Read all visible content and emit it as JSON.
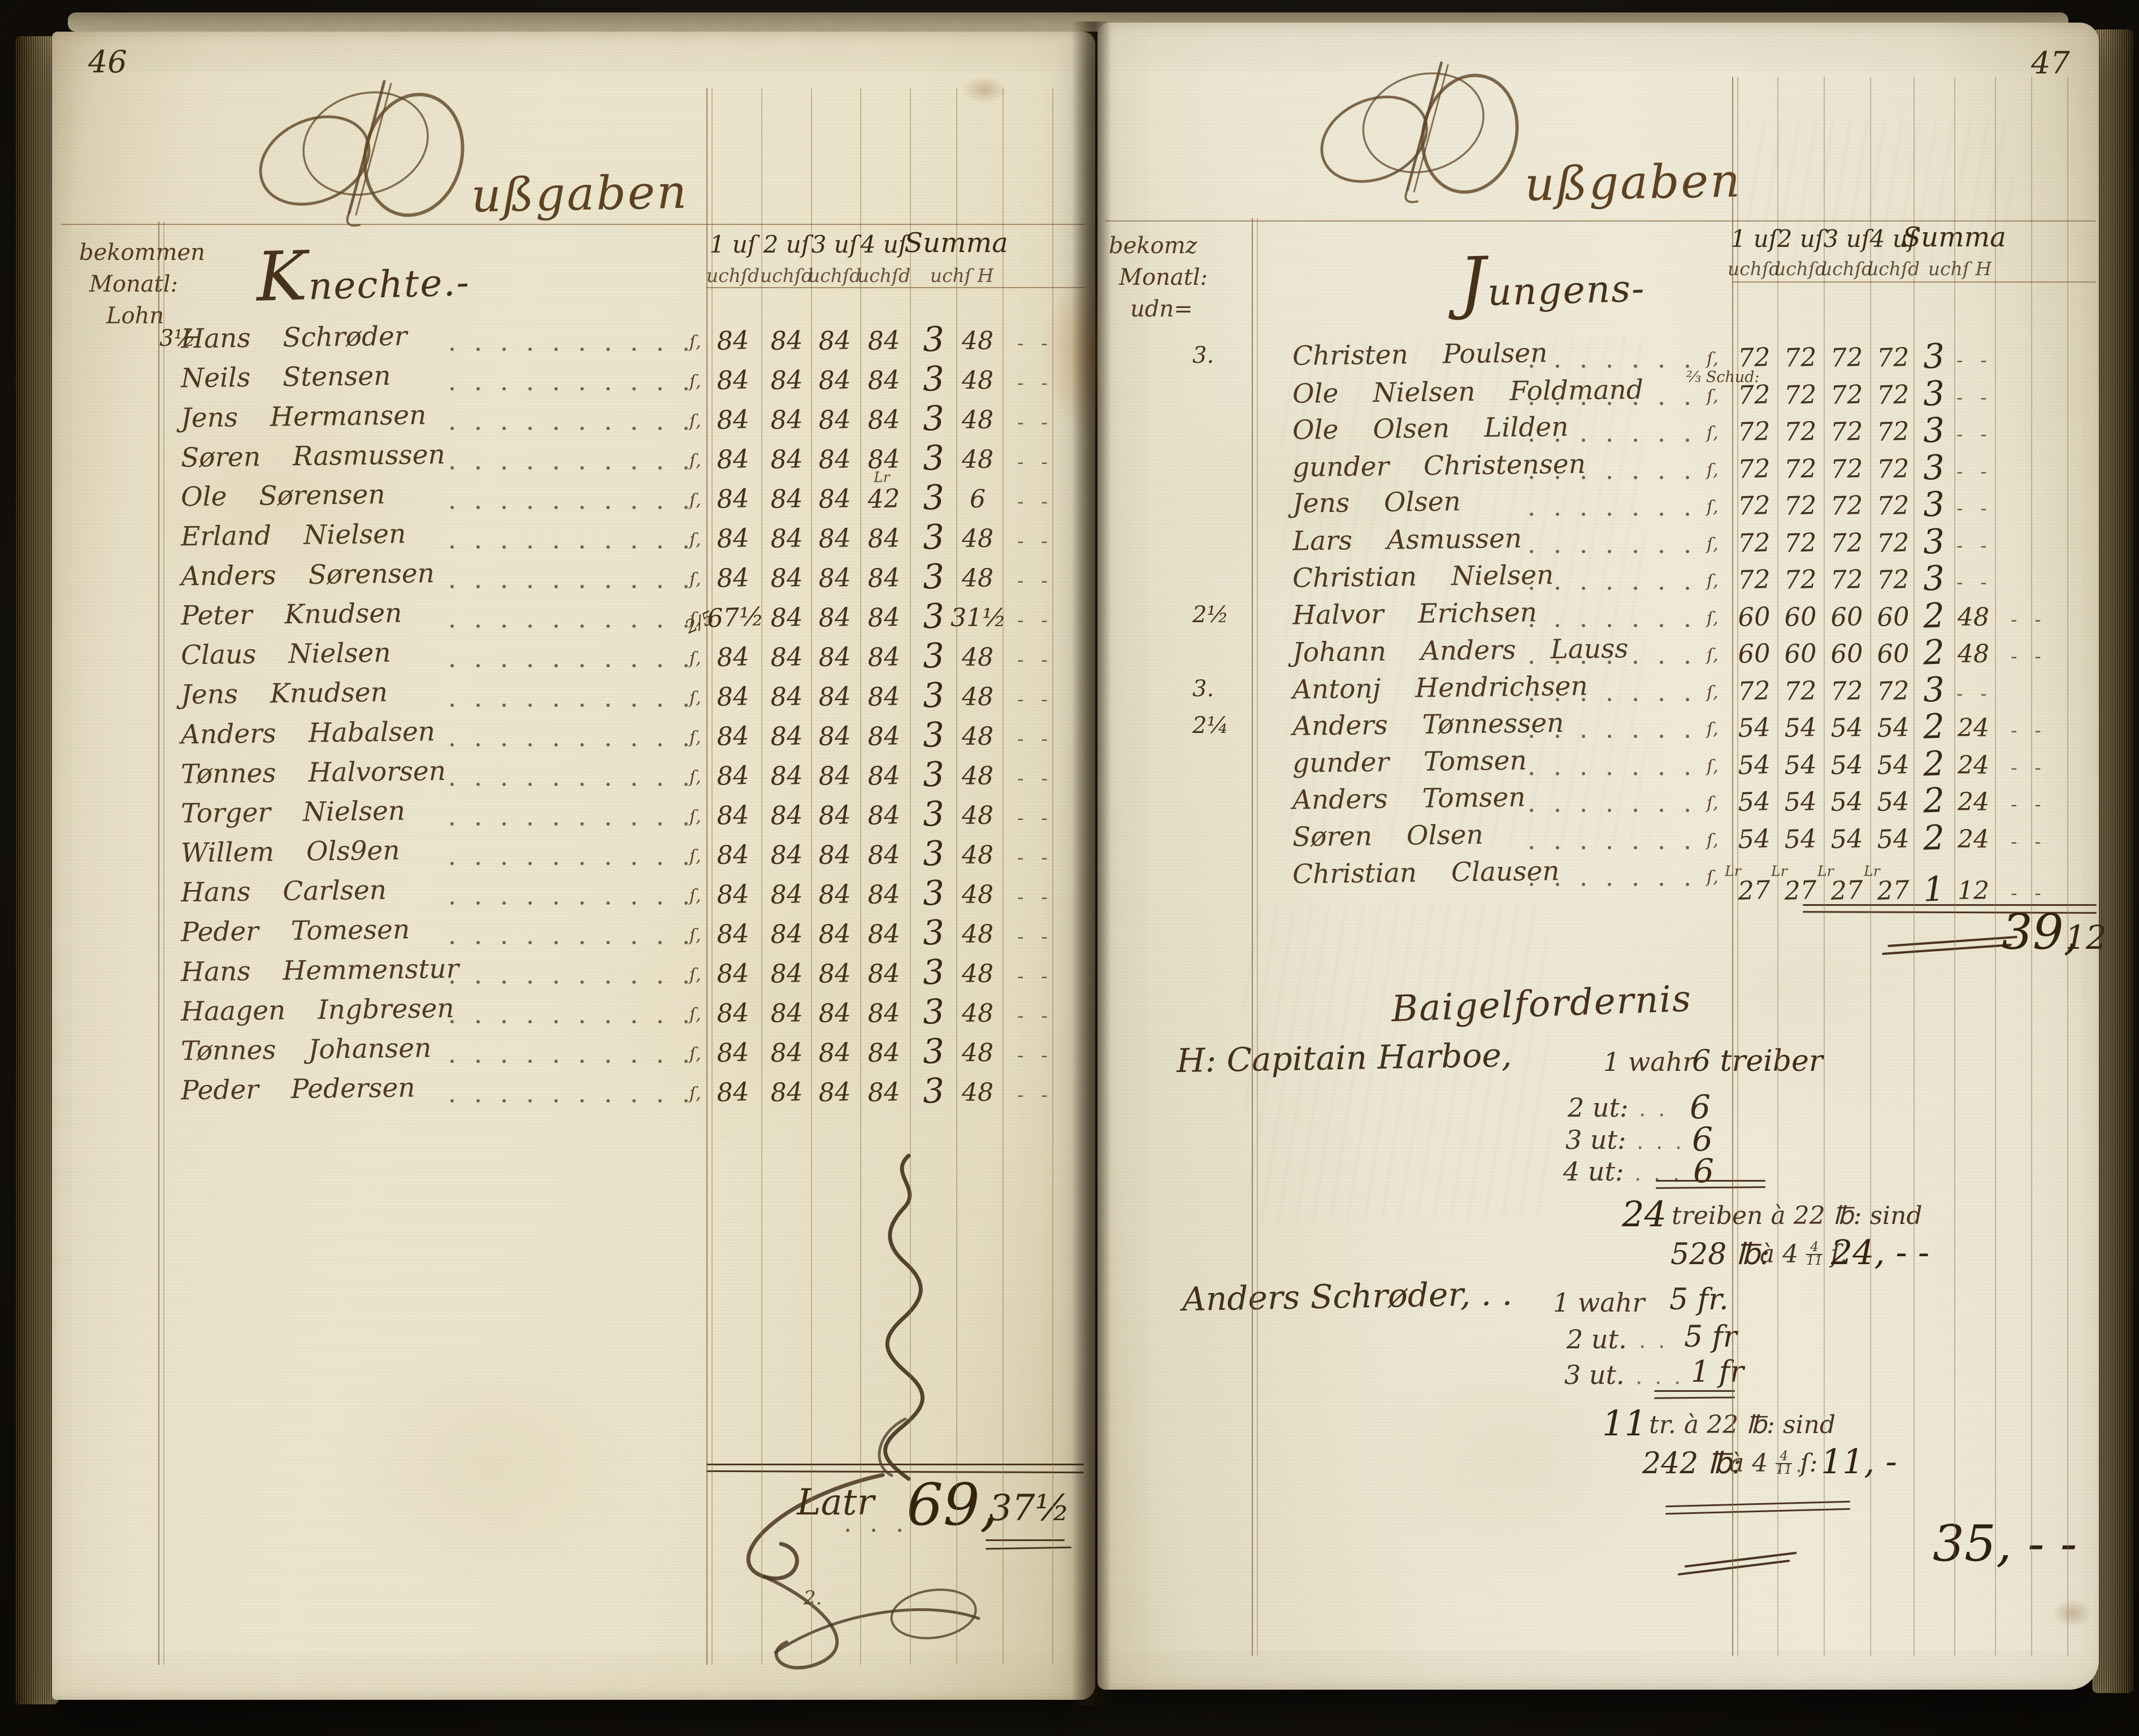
{
  "decor": {
    "tick": "ſ,",
    "row_dash": "- -",
    "flourish_note": "2."
  },
  "left_page": {
    "page_number": "46",
    "title_tail": "ußgaben",
    "margin_header": [
      "bekommen",
      "Monatl:",
      "Lohn"
    ],
    "week_headers": [
      "1 uſ",
      "2 uſ",
      "3 uſ",
      "4 uſ"
    ],
    "summa_header": "Summa",
    "week_subheaders": [
      "uchſd",
      "uchſd",
      "uchſd",
      "uchſd"
    ],
    "summa_subheader": "uchſ H",
    "section_title": "Knechte.-",
    "rows": [
      {
        "margin": "3½",
        "name": "Hans Schrøder",
        "weeks": [
          "84",
          "84",
          "84",
          "84"
        ],
        "rdl": "3",
        "skill": "48"
      },
      {
        "name": "Neils Stensen",
        "weeks": [
          "84",
          "84",
          "84",
          "84"
        ],
        "rdl": "3",
        "skill": "48"
      },
      {
        "name": "Jens Hermansen",
        "weeks": [
          "84",
          "84",
          "84",
          "84"
        ],
        "rdl": "3",
        "skill": "48"
      },
      {
        "name": "Søren Rasmussen",
        "weeks": [
          "84",
          "84",
          "84",
          "84"
        ],
        "rdl": "3",
        "skill": "48"
      },
      {
        "name": "Ole Sørensen",
        "weeks": [
          "84",
          "84",
          "84",
          "42"
        ],
        "week_note": "Lr",
        "week_note_col": 3,
        "rdl": "3",
        "skill": "6"
      },
      {
        "name": "Erland Nielsen",
        "weeks": [
          "84",
          "84",
          "84",
          "84"
        ],
        "rdl": "3",
        "skill": "48"
      },
      {
        "name": "Anders Sørensen",
        "weeks": [
          "84",
          "84",
          "84",
          "84"
        ],
        "rdl": "3",
        "skill": "48"
      },
      {
        "margin2": "2/5",
        "name": "Peter Knudsen",
        "weeks": [
          "67½",
          "84",
          "84",
          "84"
        ],
        "rdl": "3",
        "skill": "31½"
      },
      {
        "name": "Claus Nielsen",
        "weeks": [
          "84",
          "84",
          "84",
          "84"
        ],
        "rdl": "3",
        "skill": "48"
      },
      {
        "name": "Jens Knudsen",
        "weeks": [
          "84",
          "84",
          "84",
          "84"
        ],
        "rdl": "3",
        "skill": "48"
      },
      {
        "name": "Anders Habalsen",
        "weeks": [
          "84",
          "84",
          "84",
          "84"
        ],
        "rdl": "3",
        "skill": "48"
      },
      {
        "name": "Tønnes Halvorsen",
        "weeks": [
          "84",
          "84",
          "84",
          "84"
        ],
        "rdl": "3",
        "skill": "48"
      },
      {
        "name": "Torger Nielsen",
        "weeks": [
          "84",
          "84",
          "84",
          "84"
        ],
        "rdl": "3",
        "skill": "48"
      },
      {
        "name": "Willem Ols9en",
        "weeks": [
          "84",
          "84",
          "84",
          "84"
        ],
        "rdl": "3",
        "skill": "48"
      },
      {
        "name": "Hans Carlsen",
        "weeks": [
          "84",
          "84",
          "84",
          "84"
        ],
        "rdl": "3",
        "skill": "48"
      },
      {
        "name": "Peder Tomesen",
        "weeks": [
          "84",
          "84",
          "84",
          "84"
        ],
        "rdl": "3",
        "skill": "48"
      },
      {
        "name": "Hans Hemmenstur",
        "weeks": [
          "84",
          "84",
          "84",
          "84"
        ],
        "rdl": "3",
        "skill": "48"
      },
      {
        "name": "Haagen Ingbresen",
        "weeks": [
          "84",
          "84",
          "84",
          "84"
        ],
        "rdl": "3",
        "skill": "48"
      },
      {
        "name": "Tønnes Johansen",
        "weeks": [
          "84",
          "84",
          "84",
          "84"
        ],
        "rdl": "3",
        "skill": "48"
      },
      {
        "name": "Peder Pedersen",
        "weeks": [
          "84",
          "84",
          "84",
          "84"
        ],
        "rdl": "3",
        "skill": "48"
      }
    ],
    "total": {
      "label": "Latr",
      "rdl": "69,",
      "sk": "37½"
    }
  },
  "right_page": {
    "page_number": "47",
    "title_tail": "ußgaben",
    "margin_header": [
      "bekomz",
      "Monatl:",
      "udn="
    ],
    "week_headers": [
      "1 uſ",
      "2 uſ",
      "3 uſ",
      "4 uſ"
    ],
    "summa_header": "Summa",
    "week_subheaders": [
      "uchſd",
      "uchſd",
      "uchſd",
      "uchſd"
    ],
    "summa_subheader": "uchſ H",
    "section_title": "Jungens-",
    "rows": [
      {
        "margin": "3.",
        "name": "Christen Poulsen",
        "weeks": [
          "72",
          "72",
          "72",
          "72"
        ],
        "rdl": "3",
        "skill": ""
      },
      {
        "name": "Ole Nielsen Foldmand",
        "pre_note": "⅔ Schud:",
        "weeks": [
          "72",
          "72",
          "72",
          "72"
        ],
        "rdl": "3",
        "skill": ""
      },
      {
        "name": "Ole Olsen Lilden",
        "weeks": [
          "72",
          "72",
          "72",
          "72"
        ],
        "rdl": "3",
        "skill": ""
      },
      {
        "name": "gunder Christensen",
        "weeks": [
          "72",
          "72",
          "72",
          "72"
        ],
        "rdl": "3",
        "skill": ""
      },
      {
        "name": "Jens Olsen",
        "weeks": [
          "72",
          "72",
          "72",
          "72"
        ],
        "rdl": "3",
        "skill": ""
      },
      {
        "name": "Lars Asmussen",
        "weeks": [
          "72",
          "72",
          "72",
          "72"
        ],
        "rdl": "3",
        "skill": ""
      },
      {
        "name": "Christian Nielsen",
        "weeks": [
          "72",
          "72",
          "72",
          "72"
        ],
        "rdl": "3",
        "skill": ""
      },
      {
        "margin": "2½",
        "name": "Halvor Erichsen",
        "weeks": [
          "60",
          "60",
          "60",
          "60"
        ],
        "rdl": "2",
        "skill": "48"
      },
      {
        "name": "Johann Anders Lauss",
        "weeks": [
          "60",
          "60",
          "60",
          "60"
        ],
        "rdl": "2",
        "skill": "48"
      },
      {
        "margin": "3.",
        "name": "Antonj Hendrichsen",
        "weeks": [
          "72",
          "72",
          "72",
          "72"
        ],
        "rdl": "3",
        "skill": ""
      },
      {
        "margin": "2¼",
        "name": "Anders Tønnessen",
        "weeks": [
          "54",
          "54",
          "54",
          "54"
        ],
        "rdl": "2",
        "skill": "24"
      },
      {
        "name": "gunder Tomsen",
        "weeks": [
          "54",
          "54",
          "54",
          "54"
        ],
        "rdl": "2",
        "skill": "24"
      },
      {
        "name": "Anders Tomsen",
        "weeks": [
          "54",
          "54",
          "54",
          "54"
        ],
        "rdl": "2",
        "skill": "24"
      },
      {
        "name": "Søren Olsen",
        "weeks": [
          "54",
          "54",
          "54",
          "54"
        ],
        "rdl": "2",
        "skill": "24"
      },
      {
        "name": "Christian Clausen",
        "weeks": [
          "27",
          "27",
          "27",
          "27"
        ],
        "cell_marks": "Lr",
        "offset": true,
        "rdl": "1",
        "skill": "12"
      }
    ],
    "total": {
      "rdl": "39,",
      "sk": "12"
    },
    "expense_section": {
      "title": "Baigelfordernis",
      "entries": [
        {
          "name": "H: Capitain Harboe,",
          "first_line_label": "1 wahr",
          "first_line_value": "6 treiber",
          "lines": [
            {
              "label": "2 ut:",
              "value": "6"
            },
            {
              "label": "3 ut:",
              "value": "6"
            },
            {
              "label": "4 ut:",
              "value": "6"
            }
          ],
          "sum_count": "24",
          "sum_text": "treiben à 22 ℔: sind",
          "calc_amount": "528 ℔:",
          "rate_prefix": "à 4",
          "rate_num": "4",
          "rate_den": "11",
          "rate_suffix": "ſ.",
          "result": "24, - -"
        },
        {
          "name": "Anders Schrøder, . .",
          "first_line_label": "1 wahr",
          "first_line_value": "5 fr.",
          "lines": [
            {
              "label": "2 ut.",
              "value": "5 fr"
            },
            {
              "label": "3 ut.",
              "value": "1 fr"
            }
          ],
          "sum_count": "11",
          "sum_text": "tr. à 22 ℔: sind",
          "calc_amount": "242 ℔:",
          "rate_prefix": "à 4",
          "rate_num": "4",
          "rate_den": "11",
          "rate_suffix": "ſ:",
          "result": "11, -"
        }
      ],
      "grand_total": "35, - -"
    }
  }
}
